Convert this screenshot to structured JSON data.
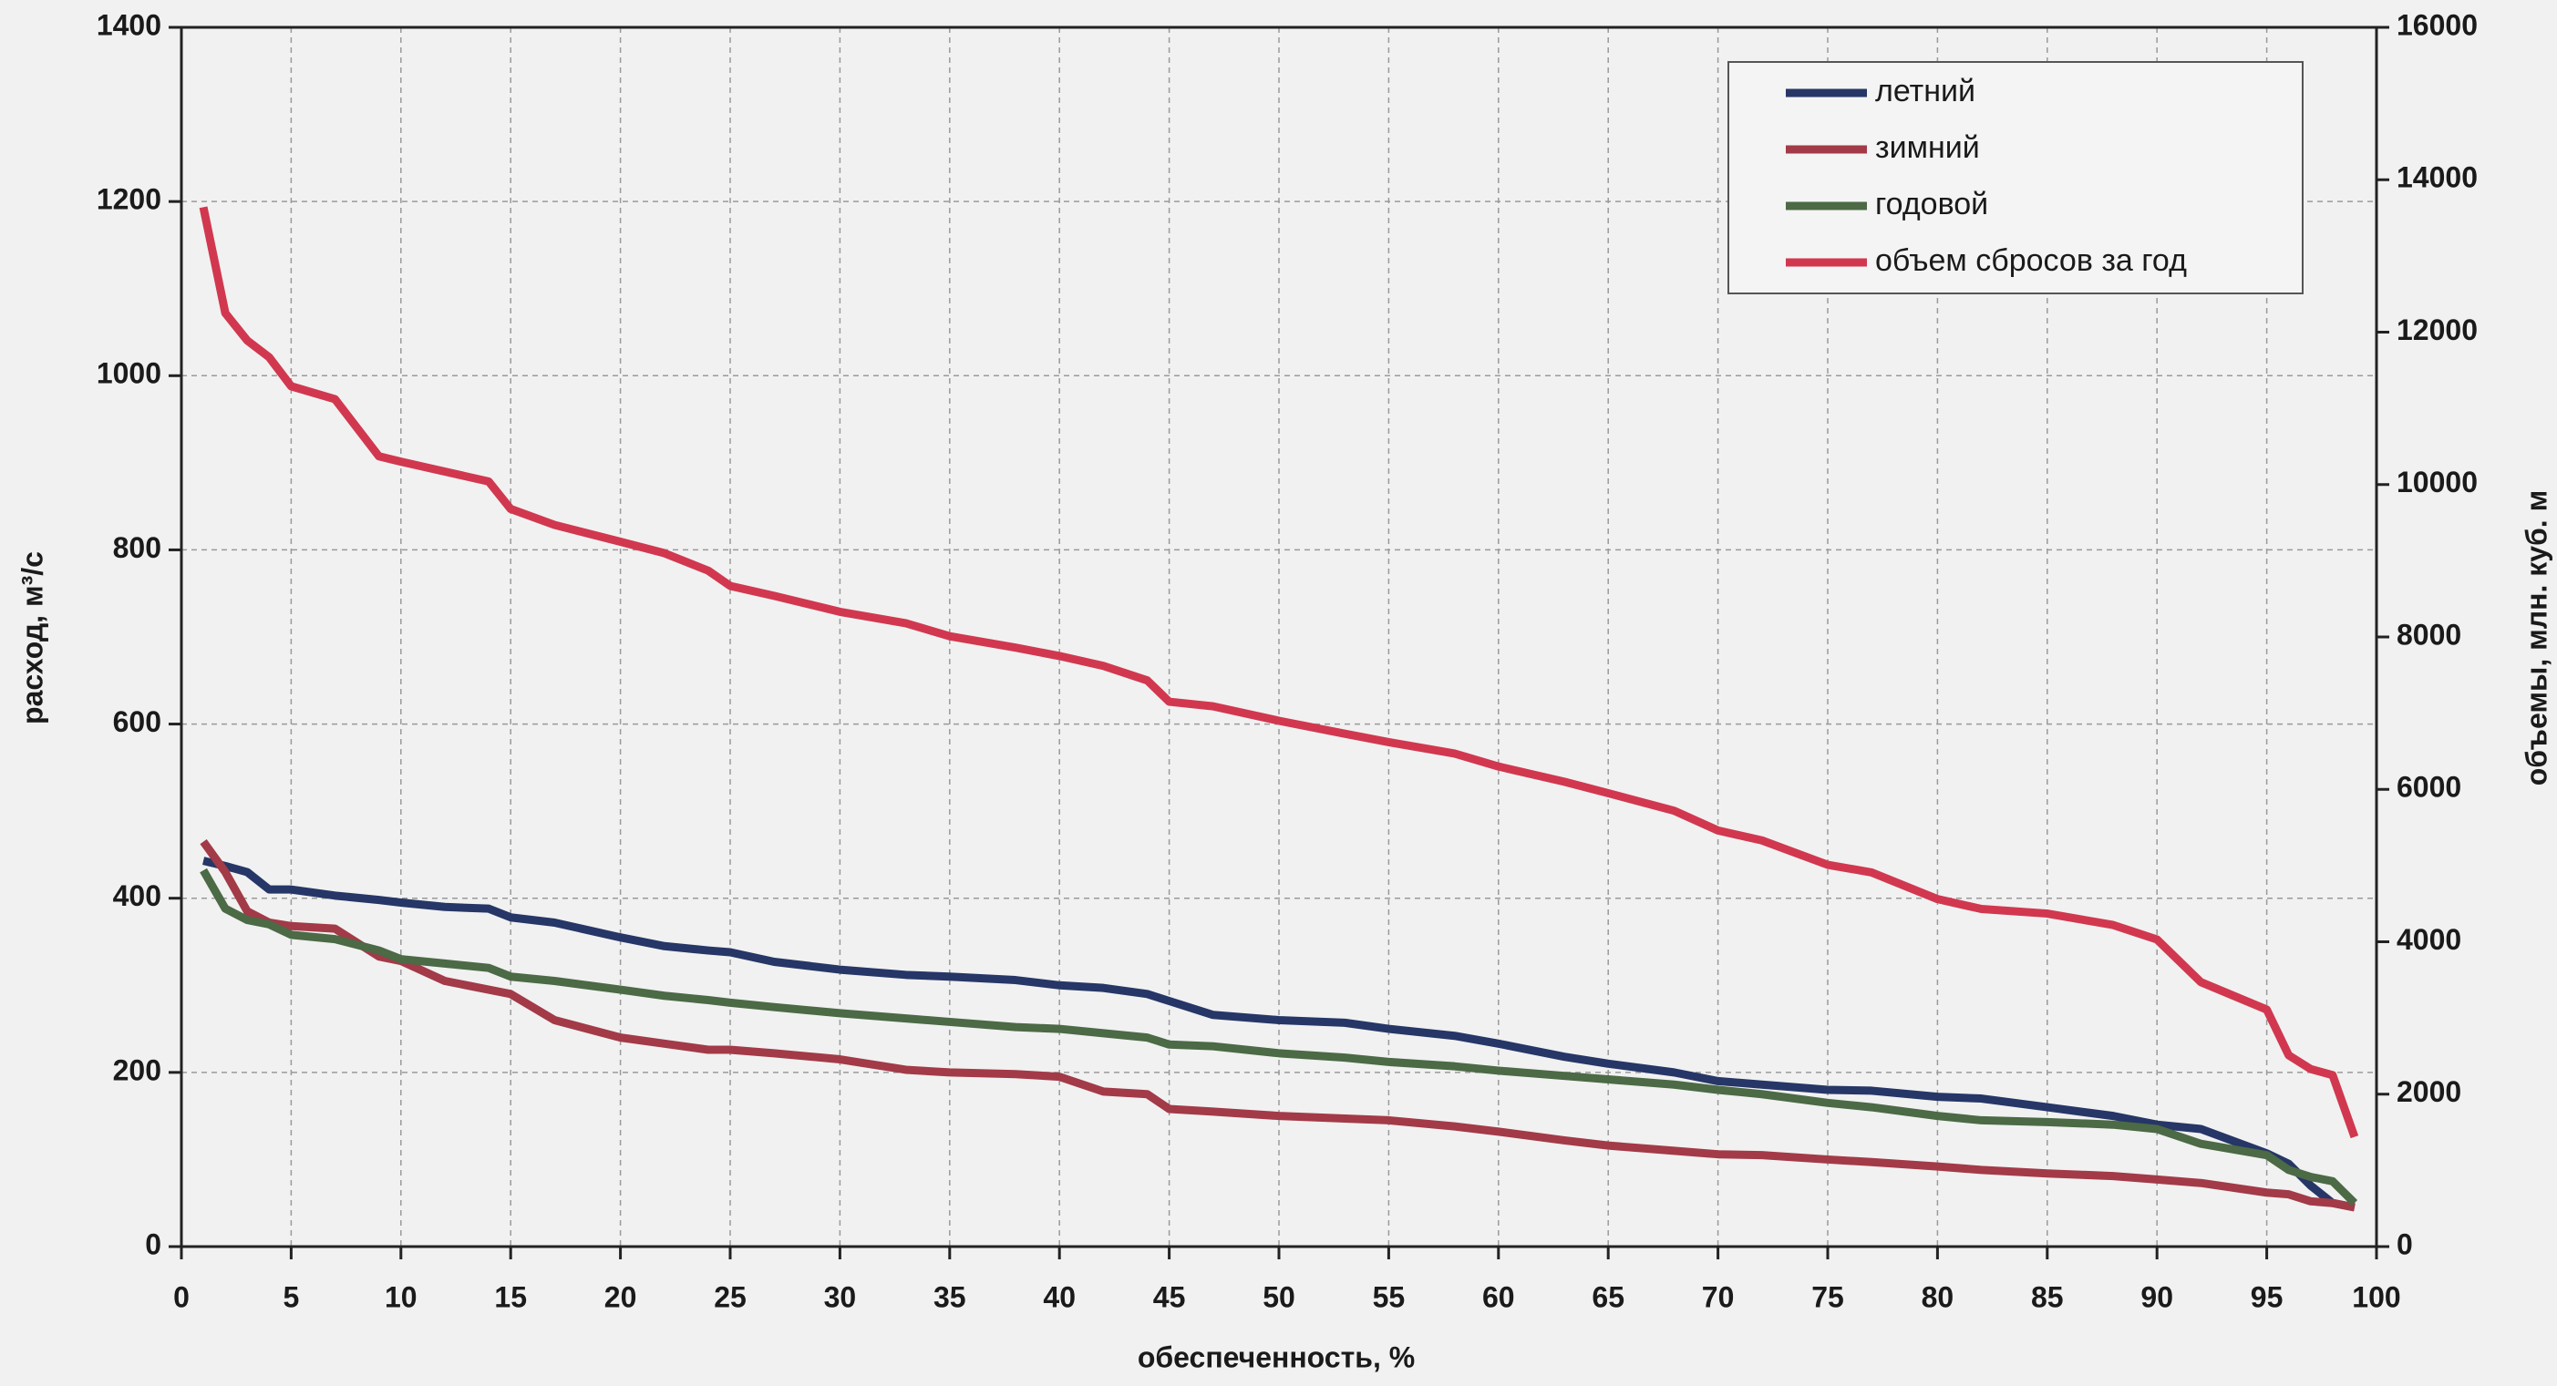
{
  "chart_data": {
    "type": "line",
    "xlabel": "обеспеченность, %",
    "ylabel": "расход, м³/с",
    "y2label": "объемы, млн. куб. м",
    "xlim": [
      0,
      100
    ],
    "xticks": [
      0,
      5,
      10,
      15,
      20,
      25,
      30,
      35,
      40,
      45,
      50,
      55,
      60,
      65,
      70,
      75,
      80,
      85,
      90,
      95,
      100
    ],
    "ylim": [
      0,
      1400
    ],
    "yticks": [
      0,
      200,
      400,
      600,
      800,
      1000,
      1200,
      1400
    ],
    "y2lim": [
      0,
      16000
    ],
    "y2ticks": [
      0,
      2000,
      4000,
      6000,
      8000,
      10000,
      12000,
      14000,
      16000
    ],
    "grid": true,
    "legend": "upper right",
    "x": [
      1,
      2,
      3,
      4,
      5,
      7,
      9,
      10,
      12,
      14,
      15,
      17,
      20,
      22,
      24,
      25,
      27,
      30,
      33,
      35,
      38,
      40,
      42,
      44,
      45,
      47,
      50,
      53,
      55,
      58,
      60,
      63,
      65,
      68,
      70,
      72,
      75,
      77,
      80,
      82,
      85,
      88,
      90,
      92,
      95,
      96,
      97,
      98,
      99
    ],
    "series": [
      {
        "name": "летний",
        "color": "#263667",
        "values": [
          443,
          437,
          430,
          410,
          410,
          403,
          398,
          395,
          390,
          388,
          378,
          372,
          355,
          345,
          340,
          338,
          327,
          318,
          312,
          310,
          306,
          300,
          297,
          290,
          282,
          266,
          260,
          257,
          250,
          242,
          233,
          218,
          210,
          200,
          190,
          186,
          180,
          179,
          172,
          170,
          160,
          150,
          140,
          135,
          107,
          95,
          70,
          50,
          45
        ]
      },
      {
        "name": "зимний",
        "color": "#a33a48",
        "values": [
          465,
          430,
          385,
          372,
          368,
          365,
          333,
          328,
          305,
          295,
          290,
          260,
          240,
          233,
          226,
          226,
          222,
          215,
          203,
          200,
          198,
          195,
          178,
          175,
          158,
          155,
          150,
          147,
          145,
          138,
          132,
          122,
          116,
          110,
          106,
          105,
          100,
          97,
          92,
          88,
          84,
          81,
          77,
          73,
          62,
          60,
          52,
          50,
          45
        ]
      },
      {
        "name": "годовой",
        "color": "#4b6a45",
        "values": [
          432,
          388,
          375,
          370,
          358,
          353,
          340,
          330,
          325,
          320,
          310,
          305,
          295,
          288,
          283,
          280,
          275,
          268,
          262,
          258,
          252,
          250,
          245,
          240,
          232,
          230,
          222,
          217,
          212,
          207,
          202,
          196,
          192,
          186,
          180,
          175,
          165,
          160,
          150,
          145,
          143,
          140,
          135,
          118,
          105,
          88,
          80,
          75,
          50
        ]
      },
      {
        "name": "объем сбросов за год",
        "color": "#d1384f",
        "axis": "y2",
        "values": [
          13640,
          12250,
          11890,
          11670,
          11290,
          11120,
          10370,
          10300,
          10170,
          10040,
          9680,
          9470,
          9250,
          9100,
          8870,
          8670,
          8540,
          8330,
          8180,
          8010,
          7860,
          7750,
          7620,
          7430,
          7150,
          7090,
          6900,
          6730,
          6620,
          6470,
          6300,
          6100,
          5950,
          5720,
          5460,
          5330,
          5010,
          4910,
          4560,
          4430,
          4370,
          4220,
          4030,
          3470,
          3110,
          2510,
          2330,
          2250,
          1440
        ]
      }
    ]
  }
}
